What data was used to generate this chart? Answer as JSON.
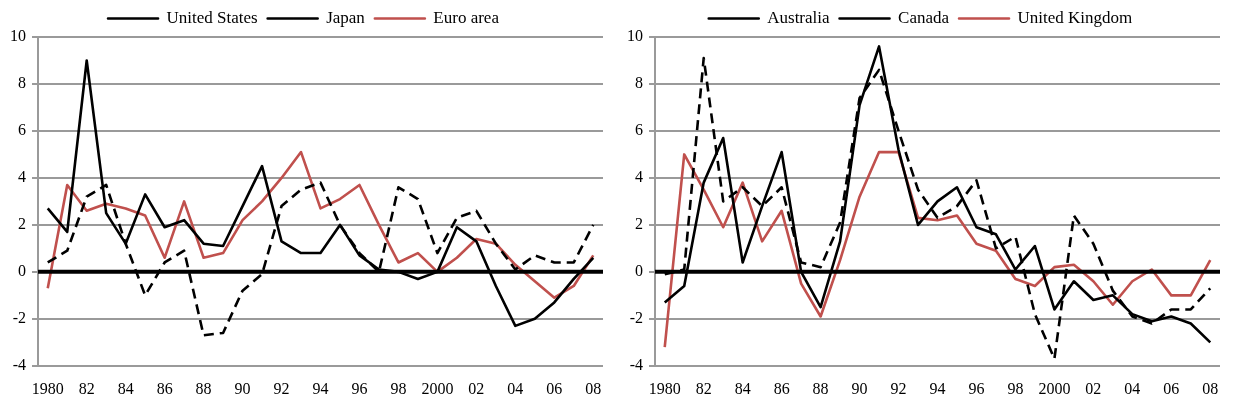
{
  "chart_data": [
    {
      "type": "line",
      "categories": [
        "1980",
        null,
        "82",
        null,
        "84",
        null,
        "86",
        null,
        "88",
        null,
        "90",
        null,
        "92",
        null,
        "94",
        null,
        "96",
        null,
        "98",
        null,
        "2000",
        null,
        "02",
        null,
        "04",
        null,
        "06",
        null,
        "08"
      ],
      "series": [
        {
          "name": "United States",
          "color": "#000000",
          "line_style": "solid",
          "values": [
            2.7,
            1.7,
            9.0,
            2.5,
            1.2,
            3.3,
            1.9,
            2.2,
            1.2,
            1.1,
            2.8,
            4.5,
            1.3,
            0.8,
            0.8,
            2.0,
            0.7,
            0.1,
            0.0,
            -0.3,
            0.0,
            1.9,
            1.3,
            -0.6,
            -2.3,
            -2.0,
            -1.3,
            -0.3,
            0.6
          ]
        },
        {
          "name": "Japan",
          "color": "#000000",
          "line_style": "dashed",
          "values": [
            0.4,
            0.9,
            3.2,
            3.7,
            1.2,
            -1.0,
            0.4,
            0.9,
            -2.7,
            -2.6,
            -0.8,
            -0.1,
            2.8,
            3.5,
            3.8,
            2.0,
            0.8,
            0.0,
            3.6,
            3.1,
            0.8,
            2.3,
            2.6,
            1.2,
            0.1,
            0.7,
            0.4,
            0.4,
            2.0
          ]
        },
        {
          "name": "Euro area",
          "color": "#c0504d",
          "line_style": "solid",
          "values": [
            -0.7,
            3.7,
            2.6,
            2.9,
            2.7,
            2.4,
            0.6,
            3.0,
            0.6,
            0.8,
            2.2,
            3.0,
            4.0,
            5.1,
            2.7,
            3.1,
            3.7,
            2.0,
            0.4,
            0.8,
            0.0,
            0.6,
            1.4,
            1.2,
            0.3,
            -0.4,
            -1.1,
            -0.6,
            0.7
          ]
        }
      ],
      "ylim": [
        -4,
        10
      ],
      "yticks": [
        -4,
        -2,
        0,
        2,
        4,
        6,
        8,
        10
      ],
      "grid": "y",
      "legend": "top",
      "marker": "none",
      "ref_lines": [
        {
          "axis": "y",
          "value": 0,
          "color": "#000000"
        }
      ]
    },
    {
      "type": "line",
      "categories": [
        "1980",
        null,
        "82",
        null,
        "84",
        null,
        "86",
        null,
        "88",
        null,
        "90",
        null,
        "92",
        null,
        "94",
        null,
        "96",
        null,
        "98",
        null,
        "2000",
        null,
        "02",
        null,
        "04",
        null,
        "06",
        null,
        "08"
      ],
      "series": [
        {
          "name": "Australia",
          "color": "#000000",
          "line_style": "solid",
          "values": [
            -1.3,
            -0.6,
            3.8,
            5.7,
            0.4,
            2.8,
            5.1,
            0.0,
            -1.5,
            1.3,
            7.1,
            9.6,
            5.2,
            2.0,
            3.0,
            3.6,
            1.9,
            1.6,
            0.1,
            1.1,
            -1.6,
            -0.4,
            -1.2,
            -1.0,
            -1.8,
            -2.1,
            -1.9,
            -2.2,
            -3.0
          ]
        },
        {
          "name": "Canada",
          "color": "#000000",
          "line_style": "dashed",
          "values": [
            -0.1,
            0.1,
            9.1,
            3.0,
            3.6,
            2.8,
            3.6,
            0.4,
            0.2,
            2.1,
            7.4,
            8.6,
            6.0,
            3.5,
            2.3,
            2.8,
            3.9,
            1.0,
            1.5,
            -1.8,
            -3.7,
            2.4,
            1.2,
            -0.8,
            -1.9,
            -2.2,
            -1.6,
            -1.6,
            -0.7
          ]
        },
        {
          "name": "United Kingdom",
          "color": "#c0504d",
          "line_style": "solid",
          "values": [
            -3.2,
            5.0,
            3.5,
            1.9,
            3.8,
            1.3,
            2.6,
            -0.5,
            -1.9,
            0.5,
            3.2,
            5.1,
            5.1,
            2.3,
            2.2,
            2.4,
            1.2,
            0.9,
            -0.3,
            -0.6,
            0.2,
            0.3,
            -0.4,
            -1.4,
            -0.4,
            0.1,
            -1.0,
            -1.0,
            0.5
          ]
        }
      ],
      "ylim": [
        -4,
        10
      ],
      "yticks": [
        -4,
        -2,
        0,
        2,
        4,
        6,
        8,
        10
      ],
      "grid": "y",
      "legend": "top",
      "marker": "none",
      "ref_lines": [
        {
          "axis": "y",
          "value": 0,
          "color": "#000000"
        }
      ]
    }
  ]
}
